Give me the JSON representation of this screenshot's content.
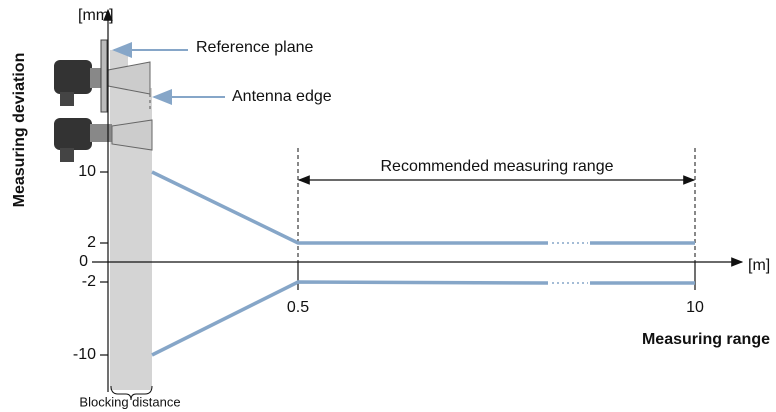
{
  "y_axis": {
    "label": "Measuring deviation",
    "unit": "[mm]",
    "ticks": [
      "10",
      "2",
      "0",
      "-2",
      "-10"
    ]
  },
  "x_axis": {
    "label": "Measuring range",
    "unit": "[m]",
    "ticks": [
      "0.5",
      "10"
    ]
  },
  "annotations": {
    "reference_plane": "Reference plane",
    "antenna_edge": "Antenna edge",
    "recommended_range": "Recommended measuring range",
    "blocking_distance": "Blocking distance"
  }
}
